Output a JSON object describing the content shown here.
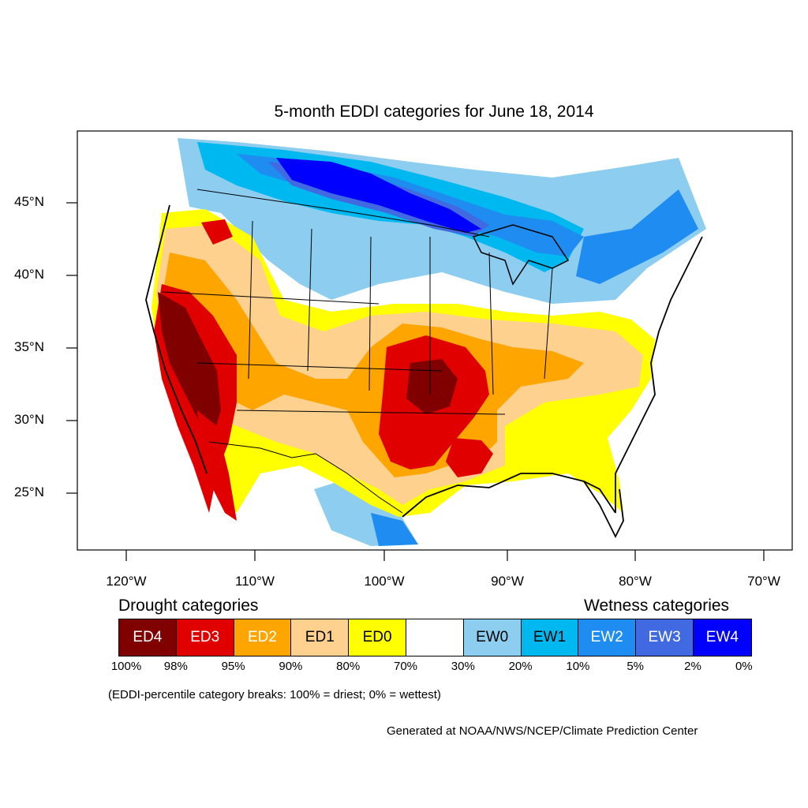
{
  "title": "5-month EDDI categories for June 18, 2014",
  "axes": {
    "lat_labels": [
      "45°N",
      "40°N",
      "35°N",
      "30°N",
      "25°N"
    ],
    "lon_labels": [
      "120°W",
      "110°W",
      "100°W",
      "90°W",
      "80°W",
      "70°W"
    ]
  },
  "legend": {
    "drought_heading": "Drought categories",
    "wetness_heading": "Wetness categories",
    "categories": [
      {
        "label": "ED4",
        "color": "#800000",
        "text_color": "#ffffff"
      },
      {
        "label": "ED3",
        "color": "#e00000",
        "text_color": "#ffffff"
      },
      {
        "label": "ED2",
        "color": "#ffa500",
        "text_color": "#ffffff"
      },
      {
        "label": "ED1",
        "color": "#ffd18f",
        "text_color": "#000000"
      },
      {
        "label": "ED0",
        "color": "#ffff00",
        "text_color": "#000000"
      },
      {
        "label": "",
        "color": "#ffffff",
        "text_color": "#000000"
      },
      {
        "label": "EW0",
        "color": "#8dcdf0",
        "text_color": "#000000"
      },
      {
        "label": "EW1",
        "color": "#00b8f0",
        "text_color": "#000000"
      },
      {
        "label": "EW2",
        "color": "#1e8cf0",
        "text_color": "#ffffff"
      },
      {
        "label": "EW3",
        "color": "#4169e1",
        "text_color": "#ffffff"
      },
      {
        "label": "EW4",
        "color": "#0000ff",
        "text_color": "#ffffff"
      }
    ],
    "breaks": [
      "100%",
      "98%",
      "95%",
      "90%",
      "80%",
      "70%",
      "30%",
      "20%",
      "10%",
      "5%",
      "2%",
      "0%"
    ]
  },
  "note": "(EDDI-percentile category breaks: 100% = driest; 0% = wettest)",
  "credit": "Generated at NOAA/NWS/NCEP/Climate Prediction Center"
}
